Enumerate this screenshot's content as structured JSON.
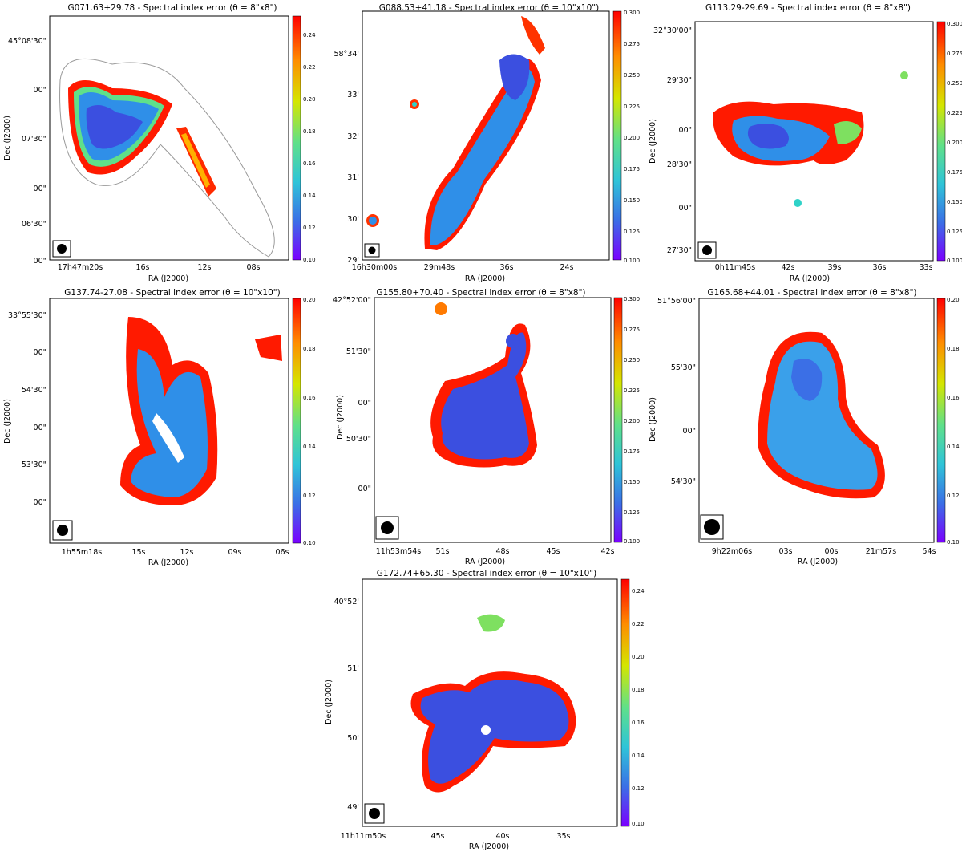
{
  "figure": {
    "description_shown": false
  },
  "chart_data": [
    {
      "type": "heatmap",
      "title": "G071.63+29.78 - Spectral index error (θ = 8\"x8\")",
      "xlabel": "RA (J2000)",
      "ylabel": "Dec (J2000)",
      "xticks": [
        "17h47m20s",
        "16s",
        "12s",
        "08s"
      ],
      "yticks": [
        "45°08'30\"",
        "00\"",
        "07'30\"",
        "00\"",
        "06'30\"",
        "00\""
      ],
      "colorbar": {
        "min": 0.1,
        "max": 0.25,
        "ticks": [
          "0.24",
          "0.22",
          "0.20",
          "0.18",
          "0.16",
          "0.14",
          "0.12",
          "0.10"
        ]
      }
    },
    {
      "type": "heatmap",
      "title": "G088.53+41.18 - Spectral index error (θ = 10\"x10\")",
      "xlabel": "RA (J2000)",
      "ylabel": "Dec (J2000)",
      "xticks": [
        "16h30m00s",
        "29m48s",
        "36s",
        "24s"
      ],
      "yticks": [
        "58°34'",
        "33'",
        "32'",
        "31'",
        "30'",
        "29'"
      ],
      "colorbar": {
        "min": 0.1,
        "max": 0.3,
        "ticks": [
          "0.300",
          "0.275",
          "0.250",
          "0.225",
          "0.200",
          "0.175",
          "0.150",
          "0.125",
          "0.100"
        ]
      }
    },
    {
      "type": "heatmap",
      "title": "G113.29-29.69 - Spectral index error (θ = 8\"x8\")",
      "xlabel": "RA (J2000)",
      "ylabel": "Dec (J2000)",
      "xticks": [
        "0h11m45s",
        "42s",
        "39s",
        "36s",
        "33s"
      ],
      "yticks": [
        "32°30'00\"",
        "29'30\"",
        "00\"",
        "28'30\"",
        "00\"",
        "27'30\""
      ],
      "colorbar": {
        "min": 0.1,
        "max": 0.3,
        "ticks": [
          "0.300",
          "0.275",
          "0.250",
          "0.225",
          "0.200",
          "0.175",
          "0.150",
          "0.125",
          "0.100"
        ]
      }
    },
    {
      "type": "heatmap",
      "title": "G137.74-27.08 - Spectral index error (θ = 10\"x10\")",
      "xlabel": "RA (J2000)",
      "ylabel": "Dec (J2000)",
      "xticks": [
        "1h55m18s",
        "15s",
        "12s",
        "09s",
        "06s"
      ],
      "yticks": [
        "33°55'30\"",
        "00\"",
        "54'30\"",
        "00\"",
        "53'30\"",
        "00\""
      ],
      "colorbar": {
        "min": 0.1,
        "max": 0.2,
        "ticks": [
          "0.20",
          "0.18",
          "0.16",
          "0.14",
          "0.12",
          "0.10"
        ]
      }
    },
    {
      "type": "heatmap",
      "title": "G155.80+70.40 - Spectral index error (θ = 8\"x8\")",
      "xlabel": "RA (J2000)",
      "ylabel": "Dec (J2000)",
      "xticks": [
        "11h53m54s",
        "51s",
        "48s",
        "45s",
        "42s"
      ],
      "yticks": [
        "42°52'00\"",
        "51'30\"",
        "00\"",
        "50'30\"",
        "00\""
      ],
      "colorbar": {
        "min": 0.1,
        "max": 0.3,
        "ticks": [
          "0.300",
          "0.275",
          "0.250",
          "0.225",
          "0.200",
          "0.175",
          "0.150",
          "0.125",
          "0.100"
        ]
      }
    },
    {
      "type": "heatmap",
      "title": "G165.68+44.01 - Spectral index error (θ = 8\"x8\")",
      "xlabel": "RA (J2000)",
      "ylabel": "Dec (J2000)",
      "xticks": [
        "9h22m06s",
        "03s",
        "00s",
        "21m57s",
        "54s"
      ],
      "yticks": [
        "51°56'00\"",
        "55'30\"",
        "00\"",
        "54'30\""
      ],
      "colorbar": {
        "min": 0.1,
        "max": 0.2,
        "ticks": [
          "0.20",
          "0.18",
          "0.16",
          "0.14",
          "0.12",
          "0.10"
        ]
      }
    },
    {
      "type": "heatmap",
      "title": "G172.74+65.30 - Spectral index error (θ = 10\"x10\")",
      "xlabel": "RA (J2000)",
      "ylabel": "Dec (J2000)",
      "xticks": [
        "11h11m50s",
        "45s",
        "40s",
        "35s"
      ],
      "yticks": [
        "40°52'",
        "51'",
        "50'",
        "49'"
      ],
      "colorbar": {
        "min": 0.1,
        "max": 0.25,
        "ticks": [
          "0.24",
          "0.22",
          "0.20",
          "0.18",
          "0.16",
          "0.14",
          "0.12",
          "0.10"
        ]
      }
    }
  ]
}
